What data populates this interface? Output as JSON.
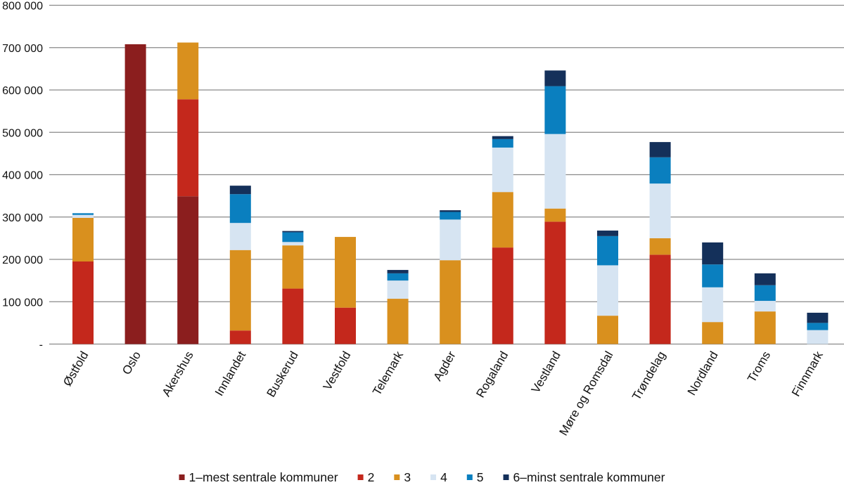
{
  "chart_data": {
    "type": "bar",
    "stacked": true,
    "ylim": [
      0,
      800000
    ],
    "yticks": [
      0,
      100000,
      200000,
      300000,
      400000,
      500000,
      600000,
      700000,
      800000
    ],
    "ytick_labels": [
      "-",
      "100 000",
      "200 000",
      "300 000",
      "400 000",
      "500 000",
      "600 000",
      "700 000",
      "800 000"
    ],
    "grid": true,
    "legend_position": "bottom",
    "categories": [
      "Østfold",
      "Oslo",
      "Akershus",
      "Innlandet",
      "Buskerud",
      "Vestfold",
      "Telemark",
      "Agder",
      "Rogaland",
      "Vestland",
      "Møre og Romsdal",
      "Trøndelag",
      "Nordland",
      "Troms",
      "Finnmark"
    ],
    "series": [
      {
        "name": "1–mest sentrale kommuner",
        "color": "#8B1E1E",
        "values": [
          0,
          708000,
          349000,
          0,
          0,
          0,
          0,
          0,
          0,
          0,
          0,
          0,
          0,
          0,
          0
        ]
      },
      {
        "name": "2",
        "color": "#C4281C",
        "values": [
          195000,
          0,
          229000,
          32000,
          131000,
          86000,
          0,
          0,
          228000,
          289000,
          0,
          211000,
          0,
          0,
          0
        ]
      },
      {
        "name": "3",
        "color": "#D9901E",
        "values": [
          103000,
          0,
          134000,
          190000,
          102000,
          167000,
          107000,
          198000,
          131000,
          31000,
          67000,
          39000,
          52000,
          77000,
          0
        ]
      },
      {
        "name": "4",
        "color": "#D6E4F2",
        "values": [
          7000,
          0,
          0,
          64000,
          8000,
          0,
          43000,
          96000,
          105000,
          176000,
          119000,
          129000,
          82000,
          25000,
          33000
        ]
      },
      {
        "name": "5",
        "color": "#0A7FBF",
        "values": [
          4000,
          0,
          0,
          68000,
          23000,
          0,
          17000,
          18000,
          20000,
          113000,
          69000,
          62000,
          54000,
          37000,
          17000
        ]
      },
      {
        "name": "6–minst sentrale kommuner",
        "color": "#14305A",
        "values": [
          0,
          0,
          0,
          20000,
          3000,
          0,
          8000,
          4000,
          7000,
          37000,
          13000,
          36000,
          52000,
          28000,
          24000
        ]
      }
    ]
  }
}
